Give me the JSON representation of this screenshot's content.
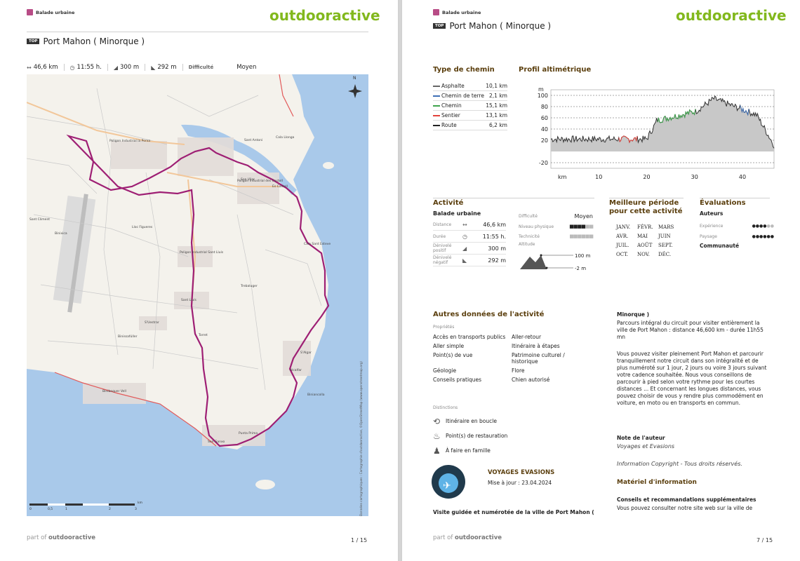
{
  "brand": "outdooractive",
  "category": "Balade urbaine",
  "top_badge": "TOP",
  "title": "Port Mahon ( Minorque )",
  "footer_prefix": "part of",
  "footer_brand": "outdooractive",
  "page1": {
    "page_number": "1 / 15",
    "stats": {
      "distance": "46,6 km",
      "duration": "11:55 h.",
      "ascent": "300 m",
      "descent": "292 m",
      "difficulty_label": "Difficulté",
      "difficulty_value": "Moyen"
    },
    "map": {
      "labels": [
        "Sant Climent",
        "Poligon Industrial la Porxa",
        "Poligon Industrial Sant Lluís",
        "Poligon Industrial des Castell",
        "Sant Lluís",
        "S'Uestrar",
        "Binibequer Vell",
        "Trebaluger",
        "Es Castell",
        "Son Vilar",
        "Cala Llonga",
        "Sant Antoni",
        "Alcalfar",
        "S'Algar",
        "Son Ganxo",
        "Punta Prima",
        "Torret",
        "Binissafúller",
        "Cala Sant Esteve",
        "Biniancolla",
        "Lloc Figueres",
        "Binixica"
      ],
      "scale_ticks": [
        "0",
        "0,5",
        "1",
        "2",
        "3"
      ],
      "scale_unit": "km",
      "attribution": "Données cartographiques : Cartographie d'outdooractive, ©OpenStreetMap (www.openstreetmap.org)",
      "north": "N"
    }
  },
  "page2": {
    "page_number": "7 / 15",
    "way_types": {
      "heading": "Type de chemin",
      "rows": [
        {
          "name": "Asphalte",
          "value": "10,1 km",
          "color": "#666666"
        },
        {
          "name": "Chemin de terre",
          "value": "2,1 km",
          "color": "#3f6fb5"
        },
        {
          "name": "Chemin",
          "value": "15,1 km",
          "color": "#3fa34d"
        },
        {
          "name": "Sentier",
          "value": "13,1 km",
          "color": "#e2423b"
        },
        {
          "name": "Route",
          "value": "6,2 km",
          "color": "#222222"
        }
      ]
    },
    "profile": {
      "heading": "Profil altimétrique",
      "ylabel": "m",
      "yticks": [
        "100",
        "80",
        "60",
        "40",
        "20",
        "-20"
      ],
      "xlabel": "km",
      "xticks": [
        "10",
        "20",
        "30",
        "40"
      ]
    },
    "activity": {
      "heading": "Activité",
      "type": "Balade urbaine",
      "rows": [
        {
          "label": "Distance",
          "value": "46,6 km"
        },
        {
          "label": "Durée",
          "value": "11:55 h."
        },
        {
          "label": "Dénivelé positif",
          "value": "300 m"
        },
        {
          "label": "Dénivelé négatif",
          "value": "292 m"
        }
      ],
      "difficulty_label": "Difficulté",
      "difficulty_value": "Moyen",
      "physical_label": "Niveau physique",
      "technique_label": "Technicité",
      "altitude_label": "Altitude",
      "alt_max": "100 m",
      "alt_min": "-2 m"
    },
    "best_period": {
      "heading": "Meilleure période pour cette activité",
      "months": [
        "JANV.",
        "FÉVR.",
        "MARS",
        "AVR.",
        "MAI",
        "JUIN",
        "JUIL.",
        "AOÛT",
        "SEPT.",
        "OCT.",
        "NOV.",
        "DÉC."
      ]
    },
    "ratings": {
      "heading": "Évaluations",
      "authors": "Auteurs",
      "experience": "Expérience",
      "landscape": "Paysage",
      "community": "Communauté"
    },
    "other": {
      "heading": "Autres données de l'activité",
      "properties_label": "Propriétés",
      "properties": [
        "Accès en transports publics",
        "Aller-retour",
        "Aller simple",
        "Itinéraire à étapes",
        "Point(s) de vue",
        "Patrimoine culturel / historique",
        "Géologie",
        "Flore",
        "Conseils pratiques",
        "Chien autorisé"
      ],
      "distinctions_label": "Distinctions",
      "distinctions": [
        "Itinéraire en boucle",
        "Point(s) de restauration",
        "À faire en famille"
      ]
    },
    "author": {
      "name": "VOYAGES EVASIONS",
      "updated": "Mise à jour : 23.04.2024"
    },
    "intro": "Visite guidée et numérotée de la ville de Port Mahon (",
    "right_text": {
      "p1_title": "Minorque )",
      "p1": "Parcours intégral du circuit pour visiter entièrement la ville de Port Mahon : distance 46,600 km - durée 11h55 mn",
      "p2": "Vous pouvez visiter pleinement Port Mahon et parcourir tranquillement notre circuit dans son intégralité et de plus numéroté sur 1 jour, 2 jours ou voire 3 jours suivant votre cadence souhaitée. Nous vous conseillons de parcourir à pied selon votre rythme pour les courtes distances ... Et concernant les longues distances, vous pouvez choisir de vous y rendre plus commodément en voiture, en moto ou en transports en commun.",
      "note_title": "Note de l'auteur",
      "note_value": "Voyages et Evasions",
      "copyright": "Information Copyright - Tous droits réservés.",
      "material_title": "Matériel d'information",
      "advice_title": "Conseils et recommandations supplémentaires",
      "advice": "Vous pouvez consulter notre site web sur la ville de"
    }
  }
}
